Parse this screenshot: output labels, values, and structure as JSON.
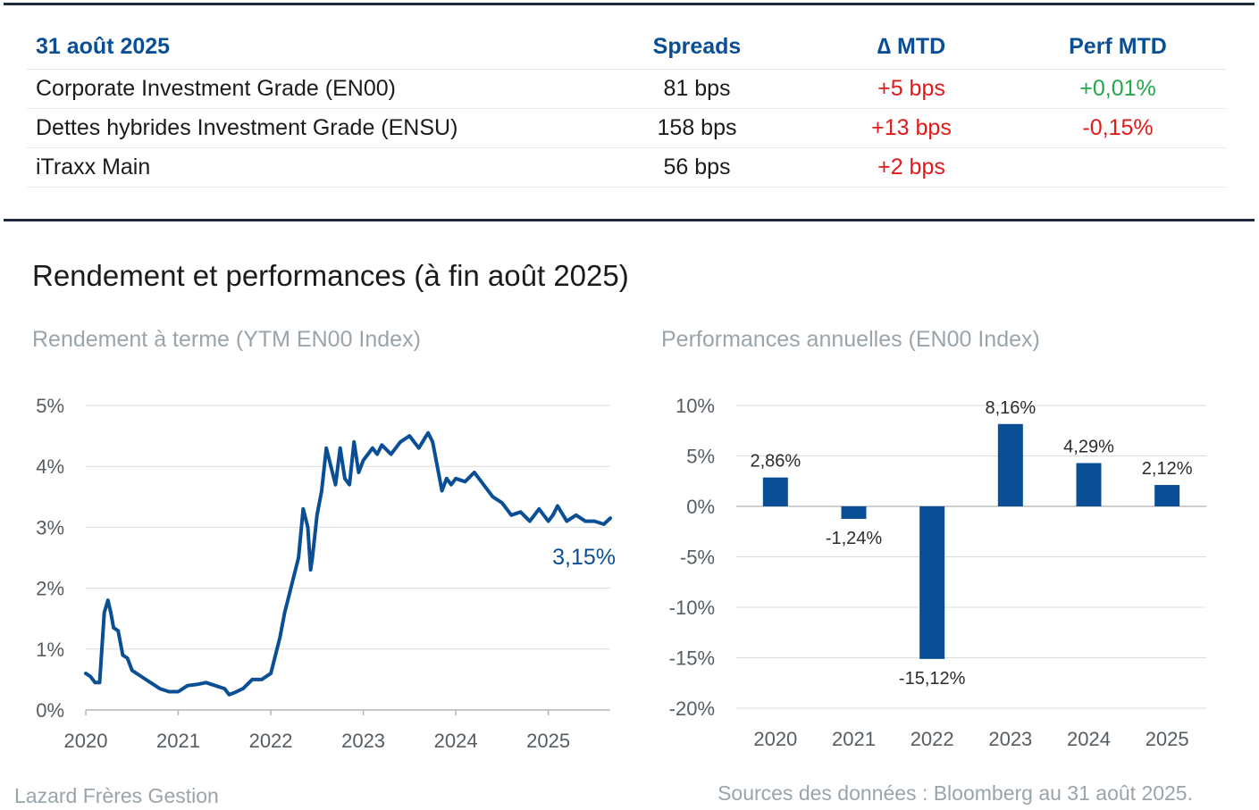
{
  "table": {
    "headers": [
      "31 août 2025",
      "Spreads",
      "∆ MTD",
      "Perf MTD"
    ],
    "rows": [
      {
        "name": "Corporate Investment Grade (EN00)",
        "spread": "81 bps",
        "delta": "+5 bps",
        "perf": "+0,01%"
      },
      {
        "name": "Dettes hybrides Investment Grade (ENSU)",
        "spread": "158 bps",
        "delta": "+13 bps",
        "perf": "-0,15%"
      },
      {
        "name": "iTraxx Main",
        "spread": "56 bps",
        "delta": "+2 bps",
        "perf": ""
      }
    ]
  },
  "section_title": "Rendement et performances (à fin août 2025)",
  "colors": {
    "brand_blue": "#0a4f96",
    "negative": "#e11a1a",
    "positive": "#22a84a",
    "grid": "#dcdcdc"
  },
  "chart_data": [
    {
      "type": "line",
      "title": "Rendement à terme (YTM EN00 Index)",
      "ylim": [
        0,
        5
      ],
      "yticks": [
        "0%",
        "1%",
        "2%",
        "3%",
        "4%",
        "5%"
      ],
      "xlim": [
        2020.0,
        2025.67
      ],
      "xticks": [
        "2020",
        "2021",
        "2022",
        "2023",
        "2024",
        "2025"
      ],
      "last_label": "3,15%",
      "series": [
        {
          "x": [
            2020.0,
            2020.05,
            2020.1,
            2020.15,
            2020.2,
            2020.24,
            2020.27,
            2020.3,
            2020.35,
            2020.4,
            2020.45,
            2020.5,
            2020.6,
            2020.7,
            2020.8,
            2020.9,
            2021.0,
            2021.1,
            2021.2,
            2021.3,
            2021.4,
            2021.5,
            2021.55,
            2021.6,
            2021.7,
            2021.8,
            2021.9,
            2022.0,
            2022.1,
            2022.15,
            2022.2,
            2022.25,
            2022.3,
            2022.35,
            2022.4,
            2022.43,
            2022.45,
            2022.5,
            2022.55,
            2022.6,
            2022.65,
            2022.7,
            2022.75,
            2022.8,
            2022.85,
            2022.9,
            2022.95,
            2023.0,
            2023.05,
            2023.1,
            2023.15,
            2023.2,
            2023.3,
            2023.4,
            2023.5,
            2023.6,
            2023.7,
            2023.75,
            2023.8,
            2023.85,
            2023.9,
            2023.95,
            2024.0,
            2024.1,
            2024.2,
            2024.3,
            2024.4,
            2024.5,
            2024.6,
            2024.7,
            2024.8,
            2024.9,
            2025.0,
            2025.05,
            2025.1,
            2025.2,
            2025.3,
            2025.4,
            2025.5,
            2025.6,
            2025.67
          ],
          "y": [
            0.6,
            0.55,
            0.45,
            0.45,
            1.6,
            1.8,
            1.6,
            1.35,
            1.3,
            0.9,
            0.85,
            0.65,
            0.55,
            0.45,
            0.35,
            0.3,
            0.3,
            0.4,
            0.42,
            0.45,
            0.4,
            0.35,
            0.25,
            0.28,
            0.35,
            0.5,
            0.5,
            0.6,
            1.2,
            1.6,
            1.9,
            2.2,
            2.5,
            3.3,
            3.0,
            2.3,
            2.5,
            3.2,
            3.6,
            4.3,
            4.0,
            3.7,
            4.3,
            3.8,
            3.7,
            4.4,
            3.9,
            4.1,
            4.2,
            4.3,
            4.2,
            4.35,
            4.2,
            4.4,
            4.5,
            4.3,
            4.55,
            4.4,
            4.0,
            3.6,
            3.8,
            3.7,
            3.8,
            3.75,
            3.9,
            3.7,
            3.5,
            3.4,
            3.2,
            3.25,
            3.1,
            3.3,
            3.1,
            3.2,
            3.35,
            3.1,
            3.2,
            3.1,
            3.1,
            3.05,
            3.15
          ]
        }
      ]
    },
    {
      "type": "bar",
      "title": "Performances annuelles (EN00 Index)",
      "categories": [
        "2020",
        "2021",
        "2022",
        "2023",
        "2024",
        "2025"
      ],
      "values": [
        2.86,
        -1.24,
        -15.12,
        8.16,
        4.29,
        2.12
      ],
      "data_labels": [
        "2,86%",
        "-1,24%",
        "-15,12%",
        "8,16%",
        "4,29%",
        "2,12%"
      ],
      "ylim": [
        -20,
        10
      ],
      "yticks": [
        "10%",
        "5%",
        "0%",
        "-5%",
        "-10%",
        "-15%",
        "-20%"
      ]
    }
  ],
  "footer": {
    "left": "Lazard Frères Gestion",
    "right": "Sources des données : Bloomberg au 31 août 2025."
  }
}
